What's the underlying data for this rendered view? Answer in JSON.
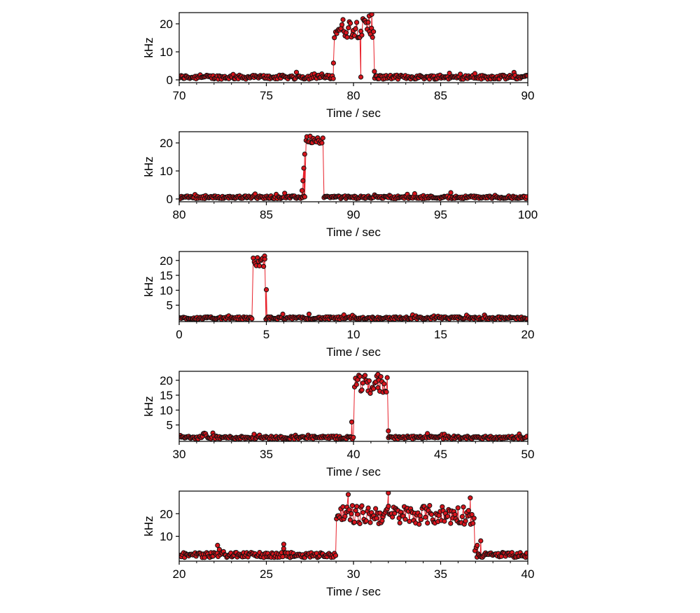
{
  "colors": {
    "line": "#e8202a",
    "marker_fill": "#d8141c",
    "marker_edge": "#111111",
    "axes": "#000000"
  },
  "chart_data": [
    {
      "type": "scatter",
      "xlabel": "Time / sec",
      "ylabel": "kHz",
      "xlim": [
        70,
        90
      ],
      "ylim": [
        -1,
        24
      ],
      "xticks": [
        "70",
        "75",
        "80",
        "85",
        "90"
      ],
      "yticks": [
        "0",
        "10",
        "20"
      ],
      "grid": false,
      "baseline": 0.8,
      "noise": 0.9,
      "bursts": [
        {
          "start": 78.9,
          "end": 81.15,
          "level": 18.5,
          "jitter": 3.5,
          "extra": [
            [
              78.85,
              6
            ],
            [
              80.42,
              1
            ],
            [
              80.9,
              22.8
            ],
            [
              81.05,
              23.4
            ],
            [
              81.2,
              3
            ]
          ]
        }
      ]
    },
    {
      "type": "scatter",
      "xlabel": "Time / sec",
      "ylabel": "kHz",
      "xlim": [
        80,
        100
      ],
      "ylim": [
        -1,
        24
      ],
      "xticks": [
        "80",
        "85",
        "90",
        "95",
        "100"
      ],
      "yticks": [
        "0",
        "10",
        "20"
      ],
      "grid": false,
      "baseline": 0.4,
      "noise": 0.6,
      "bursts": [
        {
          "start": 87.25,
          "end": 88.3,
          "level": 21.3,
          "jitter": 1.4,
          "extra": [
            [
              87.05,
              3
            ],
            [
              87.1,
              6.5
            ],
            [
              87.15,
              11
            ],
            [
              87.2,
              16
            ]
          ]
        }
      ]
    },
    {
      "type": "scatter",
      "xlabel": "Time / sec",
      "ylabel": "kHz",
      "xlim": [
        0,
        20
      ],
      "ylim": [
        -0.5,
        23
      ],
      "xticks": [
        "0",
        "5",
        "10",
        "15",
        "20"
      ],
      "yticks": [
        "5",
        "10",
        "15",
        "20"
      ],
      "grid": false,
      "baseline": 0.9,
      "noise": 0.5,
      "bursts": [
        {
          "start": 4.25,
          "end": 4.95,
          "level": 19.5,
          "jitter": 1.6,
          "extra": [
            [
              5.0,
              10.2
            ],
            [
              4.9,
              21.5
            ]
          ]
        }
      ]
    },
    {
      "type": "scatter",
      "xlabel": "Time / sec",
      "ylabel": "kHz",
      "xlim": [
        30,
        50
      ],
      "ylim": [
        -0.5,
        23
      ],
      "xticks": [
        "30",
        "35",
        "40",
        "45",
        "50"
      ],
      "yticks": [
        "5",
        "10",
        "15",
        "20"
      ],
      "grid": false,
      "baseline": 1.0,
      "noise": 0.6,
      "bursts": [
        {
          "start": 40.0,
          "end": 41.95,
          "level": 18.5,
          "jitter": 3.2,
          "extra": [
            [
              39.9,
              6
            ],
            [
              42.0,
              3
            ],
            [
              41.4,
              22
            ]
          ]
        }
      ]
    },
    {
      "type": "scatter",
      "xlabel": "Time / sec",
      "ylabel": "kHz",
      "xlim": [
        20,
        40
      ],
      "ylim": [
        -1,
        30
      ],
      "xticks": [
        "20",
        "25",
        "30",
        "35",
        "40"
      ],
      "yticks": [
        "10",
        "20"
      ],
      "grid": false,
      "baseline": 2.0,
      "noise": 1.4,
      "bursts": [
        {
          "start": 29.0,
          "end": 36.95,
          "level": 19.5,
          "jitter": 4.2,
          "extra": [
            [
              29.7,
              28.5
            ],
            [
              32.0,
              29.2
            ],
            [
              36.7,
              27
            ],
            [
              37.1,
              6
            ],
            [
              37.3,
              8
            ],
            [
              26.0,
              6.5
            ],
            [
              22.2,
              6
            ]
          ]
        }
      ]
    }
  ]
}
